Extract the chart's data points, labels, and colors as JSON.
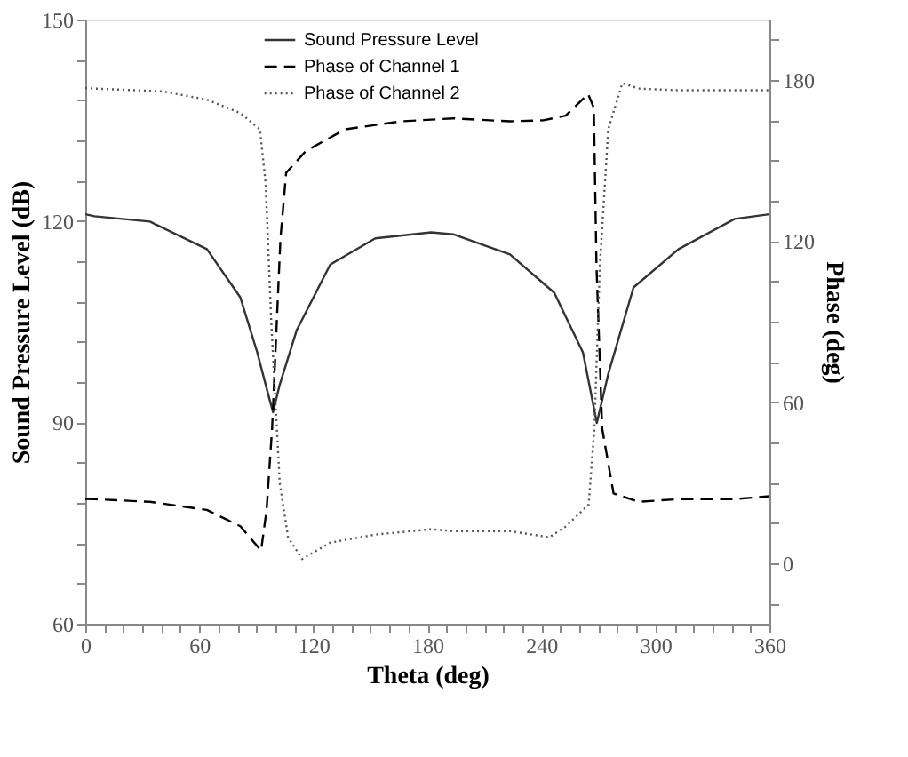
{
  "chart_data": {
    "type": "line",
    "xlabel": "Theta (deg)",
    "ylabel": "Sound Pressure Level (dB)",
    "y2label": "Phase (deg)",
    "xlim": [
      0,
      360
    ],
    "ylim": [
      60,
      150
    ],
    "y2lim": [
      -22.5,
      202.5
    ],
    "xticks": [
      0,
      {
        "value": 10,
        "label": null
      },
      {
        "value": 20,
        "label": null
      },
      {
        "value": 30,
        "label": null
      },
      {
        "value": 40,
        "label": null
      },
      {
        "value": 50,
        "label": null
      },
      60,
      {
        "value": 70,
        "label": null
      },
      {
        "value": 80,
        "label": null
      },
      {
        "value": 90,
        "label": null
      },
      {
        "value": 100,
        "label": null
      },
      {
        "value": 110,
        "label": null
      },
      120,
      {
        "value": 130,
        "label": null
      },
      {
        "value": 140,
        "label": null
      },
      {
        "value": 150,
        "label": null
      },
      {
        "value": 160,
        "label": null
      },
      {
        "value": 170,
        "label": null
      },
      180,
      {
        "value": 190,
        "label": null
      },
      {
        "value": 200,
        "label": null
      },
      {
        "value": 210,
        "label": null
      },
      {
        "value": 220,
        "label": null
      },
      {
        "value": 230,
        "label": null
      },
      240,
      {
        "value": 250,
        "label": null
      },
      {
        "value": 260,
        "label": null
      },
      {
        "value": 270,
        "label": null
      },
      {
        "value": 280,
        "label": null
      },
      {
        "value": 290,
        "label": null
      },
      300,
      {
        "value": 310,
        "label": null
      },
      {
        "value": 320,
        "label": null
      },
      {
        "value": 330,
        "label": null
      },
      {
        "value": 340,
        "label": null
      },
      {
        "value": 350,
        "label": null
      },
      360
    ],
    "yticks": [
      60,
      {
        "value": 66,
        "label": null
      },
      {
        "value": 72,
        "label": null
      },
      {
        "value": 78,
        "label": null
      },
      {
        "value": 84,
        "label": null
      },
      90,
      {
        "value": 96,
        "label": null
      },
      {
        "value": 102,
        "label": null
      },
      {
        "value": 108,
        "label": null
      },
      {
        "value": 114,
        "label": null
      },
      120,
      {
        "value": 126,
        "label": null
      },
      {
        "value": 132,
        "label": null
      },
      {
        "value": 138,
        "label": null
      },
      {
        "value": 144,
        "label": null
      },
      150
    ],
    "y2ticks": [
      {
        "value": -15,
        "label": null
      },
      0,
      {
        "value": 15,
        "label": null
      },
      {
        "value": 30,
        "label": null
      },
      {
        "value": 45,
        "label": null
      },
      60,
      {
        "value": 75,
        "label": null
      },
      {
        "value": 90,
        "label": null
      },
      {
        "value": 105,
        "label": null
      },
      120,
      {
        "value": 135,
        "label": null
      },
      {
        "value": 150,
        "label": null
      },
      {
        "value": 165,
        "label": null
      },
      180,
      {
        "value": 195,
        "label": null
      }
    ],
    "grid": false,
    "legend": "top",
    "series": [
      {
        "name": "Sound Pressure Level",
        "color": "#333333",
        "line_style": "solid",
        "x": [
          0,
          4.8,
          34,
          64,
          81.6,
          90.5,
          96.4,
          98.8,
          102.3,
          111.2,
          128.9,
          152.6,
          182,
          193.9,
          223.5,
          246.8,
          261.9,
          269.2,
          275.2,
          288.5,
          312.2,
          341.7,
          360
        ],
        "values": [
          121,
          120.7,
          119.9,
          115.8,
          108.6,
          100.4,
          94,
          91.5,
          95.6,
          103.7,
          113.5,
          117.4,
          118.3,
          118,
          115,
          109.3,
          100.4,
          89.9,
          97.2,
          110.1,
          115.8,
          120.3,
          121
        ]
      },
      {
        "name": "Phase of Channel 1",
        "color": "#000000",
        "line_style": "dashed",
        "axis": "y2",
        "x": [
          0,
          4.8,
          34,
          64,
          81.6,
          92.5,
          95.4,
          98.3,
          102.7,
          105.7,
          116,
          136.6,
          166,
          193.9,
          223.5,
          241,
          252.8,
          264.6,
          267.6,
          269,
          272,
          278,
          291.3,
          312.2,
          341.7,
          360
        ],
        "values": [
          24,
          23.9,
          22.9,
          19.9,
          13.8,
          4.7,
          19.9,
          50.2,
          121,
          145.4,
          153.5,
          161.6,
          164.6,
          165.7,
          164.6,
          165,
          166.7,
          174.8,
          169.7,
          111,
          50.2,
          26,
          22.9,
          23.9,
          23.9,
          25
        ]
      },
      {
        "name": "Phase of Channel 2",
        "color": "#555555",
        "line_style": "dotted",
        "axis": "y2",
        "x": [
          0,
          4.8,
          40.2,
          64,
          81.6,
          91.9,
          94.9,
          97.8,
          102.3,
          106.7,
          114.1,
          128.9,
          152.6,
          182,
          193.9,
          223.5,
          244.2,
          253,
          264.9,
          267.9,
          270.8,
          275.2,
          282.6,
          291.5,
          312.2,
          341.7,
          360
        ],
        "values": [
          177,
          176.8,
          175.8,
          172.7,
          167.7,
          161.6,
          141.4,
          90.7,
          30,
          9.7,
          1.6,
          7.7,
          10.7,
          12.7,
          12,
          12,
          9.7,
          13.8,
          21.9,
          50.2,
          111,
          161.6,
          178.8,
          176.8,
          176.2,
          176.2,
          176.2
        ]
      }
    ]
  }
}
